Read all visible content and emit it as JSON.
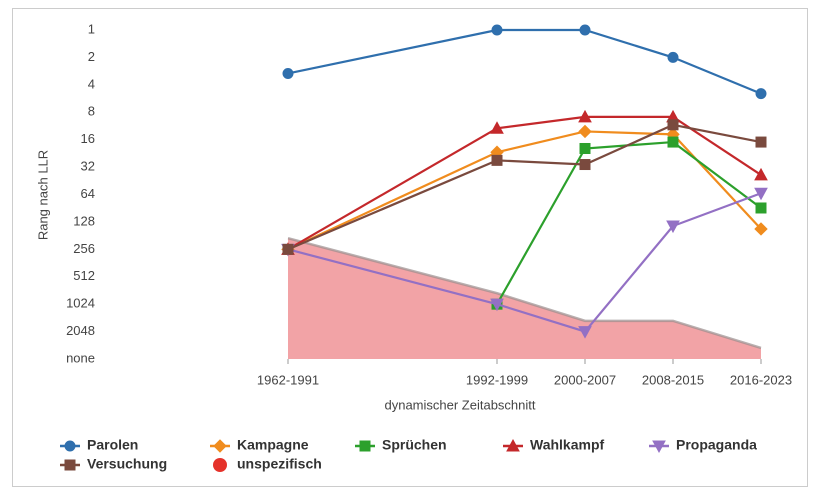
{
  "chart_data": {
    "type": "line",
    "y_label": "Rang nach LLR",
    "x_label": "dynamischer Zeitabschnitt",
    "y_scale": "log",
    "y_reversed": true,
    "grid": false,
    "legend_position": "bottom",
    "xlim": [
      1959.5,
      2021.5
    ],
    "xticks": [
      {
        "value": 1976.5,
        "label": "1962-1991"
      },
      {
        "value": 1995.5,
        "label": "1992-1999"
      },
      {
        "value": 2003.5,
        "label": "2000-2007"
      },
      {
        "value": 2011.5,
        "label": "2008-2015"
      },
      {
        "value": 2019.5,
        "label": "2016-2023"
      }
    ],
    "ylim": [
      1,
      4096
    ],
    "yticks": [
      1,
      2,
      4,
      8,
      16,
      32,
      64,
      128,
      256,
      512,
      1024,
      2048,
      {
        "value": 4096,
        "label": "none"
      }
    ],
    "x": [
      1976.5,
      1995.5,
      2003.5,
      2011.5,
      2019.5
    ],
    "series": [
      {
        "name": "Parolen",
        "color": "#2f6fad",
        "marker": "circle",
        "values": [
          3,
          1,
          1,
          2,
          5
        ]
      },
      {
        "name": "Kampagne",
        "color": "#f08c1e",
        "marker": "diamond",
        "values": [
          256,
          22,
          13,
          14,
          153
        ]
      },
      {
        "name": "Sprüchen",
        "color": "#2ca02c",
        "marker": "square",
        "values": [
          null,
          1024,
          20,
          17,
          90
        ]
      },
      {
        "name": "Wahlkampf",
        "color": "#c4282b",
        "marker": "triangle",
        "values": [
          256,
          12,
          9,
          9,
          39
        ]
      },
      {
        "name": "Propaganda",
        "color": "#9370c4",
        "marker": "triangle-down",
        "values": [
          256,
          1024,
          2048,
          142,
          62
        ]
      },
      {
        "name": "Versuchung",
        "color": "#7a4a3e",
        "marker": "square",
        "values": [
          256,
          27,
          30,
          11,
          17
        ]
      },
      {
        "name": "unspezifisch",
        "color": "#e5322a",
        "marker": "area",
        "fill": "#f2a3a6",
        "values": [
          193,
          776,
          1560,
          1560,
          3100
        ]
      }
    ]
  }
}
